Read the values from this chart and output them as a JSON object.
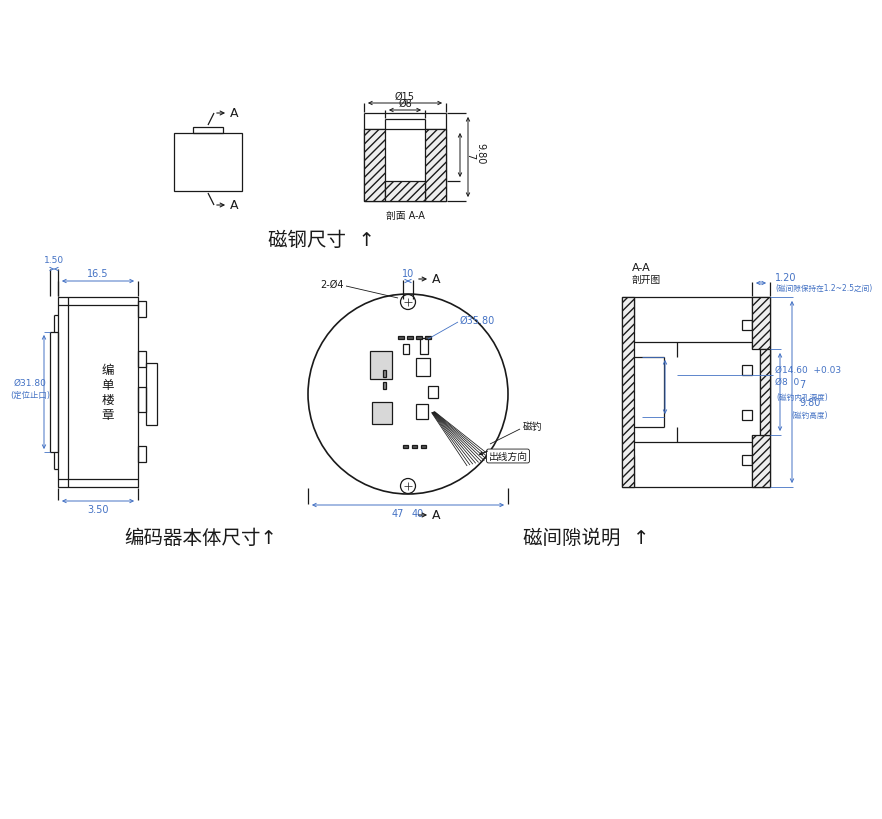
{
  "bg_color": "#ffffff",
  "lc": "#1a1a1a",
  "bc": "#4472C4",
  "title1": "磁钢尺寸  ↑",
  "title2": "编码器本体尺寸↑",
  "title3": "磁间隙说明  ↑",
  "note_aa": "A-A",
  "note_cutview": "剖开图",
  "note_section": "剖面 A-A",
  "label_A": "A",
  "dim_phi15": "Ø15",
  "dim_phi8_top": "Ø8",
  "dim_980": "9.80",
  "dim_7": "7",
  "dim_165": "16.5",
  "dim_150": "1.50",
  "dim_350": "3.50",
  "dim_phi3180": "Ø31.80",
  "dim_djzk": "(定位止口)",
  "dim_10": "10",
  "dim_47": "47",
  "dim_40": "40",
  "dim_phi3580": "Ø35.80",
  "dim_2phi4": "2-Ø4",
  "dim_120": "1.20",
  "note_gap": "(磁间隙保持在1.2~2.5之间)",
  "dim_phi1460": "Ø14.60  +0.03",
  "dim_phi80": "Ø8  0",
  "dim_7b": "7",
  "note_depth": "(磁钓内孔深度)",
  "dim_980b": "9.80",
  "note_height": "(磁钓高度)",
  "label_magnet": "磁钓",
  "label_wire": "出线方向",
  "vert_text": "编单楼章"
}
